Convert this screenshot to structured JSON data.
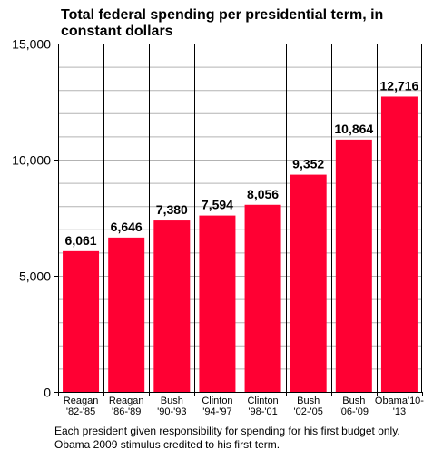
{
  "chart_data": {
    "type": "bar",
    "title_lines": [
      "Total federal spending per presidential term, in",
      "constant dollars"
    ],
    "xlabel": "",
    "ylabel": "",
    "ylim": [
      0,
      15000
    ],
    "yticks": [
      0,
      5000,
      10000,
      15000
    ],
    "ytick_labels": [
      "0",
      "5,000",
      "10,000",
      "15,000"
    ],
    "grid": true,
    "categories": [
      [
        "Reagan",
        "'82-'85"
      ],
      [
        "Reagan",
        "'86-'89"
      ],
      [
        "Bush",
        "'90-'93"
      ],
      [
        "Clinton",
        "'94-'97"
      ],
      [
        "Clinton",
        "'98-'01"
      ],
      [
        "Bush",
        "'02-'05"
      ],
      [
        "Bush",
        "'06-'09"
      ],
      [
        "Obama'10-",
        "'13"
      ]
    ],
    "values": [
      6061,
      6646,
      7380,
      7594,
      8056,
      9352,
      10864,
      12716
    ],
    "value_labels": [
      "6,061",
      "6,646",
      "7,380",
      "7,594",
      "8,056",
      "9,352",
      "10,864",
      "12,716"
    ],
    "bar_color": "#ff0033",
    "grid_color": "#b3b3b3",
    "notes": [
      "Each president given responsibility for spending for his first budget only.",
      "Obama 2009 stimulus credited to his first term."
    ]
  }
}
